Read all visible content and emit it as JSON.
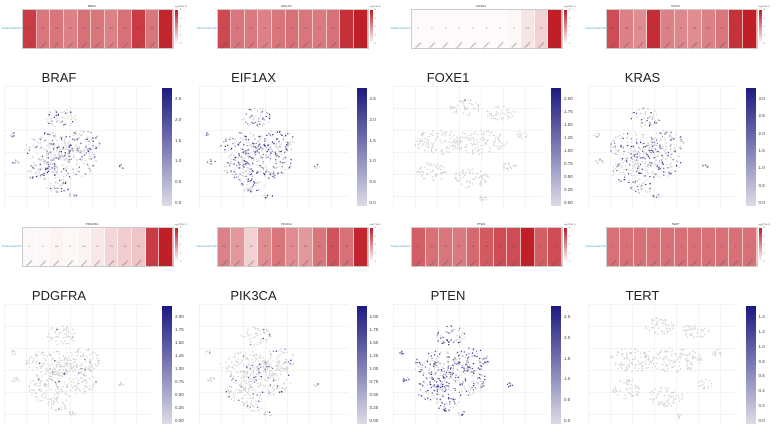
{
  "colors": {
    "heat_high": "#c01a24",
    "heat_low": "#ffffff",
    "expr_high": "#1c1a80",
    "expr_low": "#dcdce6",
    "cell_grey": "#cfcfcf",
    "row_label": "#5aa9d6"
  },
  "heatmaps": [
    {
      "gene": "BRAF",
      "row_label": "DataLoaderInfo",
      "legend_title": "log(TPM+1)",
      "legend_ticks": [
        "8",
        "6",
        "4",
        "2",
        "0"
      ],
      "values": [
        "5.8",
        "4.8",
        "4.8",
        "4.4",
        "4.9",
        "4.8",
        "4.5",
        "4.9",
        "5.8",
        "4.8",
        "6.2"
      ],
      "intensity": [
        0.85,
        0.6,
        0.6,
        0.55,
        0.62,
        0.6,
        0.55,
        0.62,
        0.85,
        0.6,
        0.95
      ]
    },
    {
      "gene": "EIF1AX",
      "row_label": "DataLoaderInfo",
      "legend_title": "log(TPM+1)",
      "legend_ticks": [
        "8",
        "6",
        "4",
        "2",
        "0"
      ],
      "values": [
        "5.9",
        "5.3",
        "5.2",
        "5.0",
        "5.3",
        "5.4",
        "5.3",
        "5.2",
        "5.4",
        "6.0",
        "6.4"
      ],
      "intensity": [
        0.8,
        0.6,
        0.58,
        0.55,
        0.6,
        0.62,
        0.6,
        0.58,
        0.62,
        0.9,
        0.98
      ]
    },
    {
      "gene": "FOXE1",
      "row_label": "DataLoaderInfo",
      "legend_title": "log(TPM+1)",
      "legend_ticks": [
        "8",
        "6",
        "4",
        "2",
        "0"
      ],
      "values": [
        "0",
        "0",
        "0",
        "0",
        "0",
        "0",
        "0",
        "0",
        "0.5",
        "1.2",
        "6.5"
      ],
      "intensity": [
        0.02,
        0.02,
        0.02,
        0.02,
        0.02,
        0.02,
        0.02,
        0.03,
        0.12,
        0.2,
        0.98
      ]
    },
    {
      "gene": "KRAS",
      "row_label": "DataLoaderInfo",
      "legend_title": "log(TPM+1)",
      "legend_ticks": [
        "8",
        "6",
        "4",
        "2",
        "0"
      ],
      "values": [
        "4.6",
        "3.8",
        "3.5",
        "4.9",
        "3.9",
        "3.7",
        "3.6",
        "3.8",
        "4.0",
        "5.0",
        "5.5"
      ],
      "intensity": [
        0.78,
        0.55,
        0.5,
        0.92,
        0.55,
        0.52,
        0.5,
        0.55,
        0.6,
        0.9,
        0.98
      ]
    },
    {
      "gene": "PDGFRA",
      "row_label": "DataLoaderInfo",
      "legend_title": "log(TPM+1)",
      "legend_ticks": [
        "8",
        "6",
        "4",
        "2",
        "0"
      ],
      "values": [
        "0",
        "0",
        "0.4",
        "0",
        "0.4",
        "1.0",
        "1.3",
        "1.6",
        "1.8",
        "4.8",
        "6.0"
      ],
      "intensity": [
        0.03,
        0.03,
        0.05,
        0.03,
        0.05,
        0.1,
        0.18,
        0.22,
        0.25,
        0.85,
        0.98
      ]
    },
    {
      "gene": "PIK3CA",
      "row_label": "DataLoaderInfo",
      "legend_title": "log(TPM+1)",
      "legend_ticks": [
        "8",
        "6",
        "4",
        "2",
        "0"
      ],
      "values": [
        "3.6",
        "3.2",
        "2.0",
        "3.3",
        "3.8",
        "3.4",
        "3.2",
        "3.8",
        "4.5",
        "3.9",
        "5.5"
      ],
      "intensity": [
        0.55,
        0.45,
        0.2,
        0.5,
        0.6,
        0.5,
        0.45,
        0.6,
        0.75,
        0.62,
        0.95
      ]
    },
    {
      "gene": "PTEN",
      "row_label": "DataLoaderInfo",
      "legend_title": "log(TPM+1)",
      "legend_ticks": [
        "8",
        "6",
        "4",
        "2",
        "0"
      ],
      "values": [
        "4.7",
        "4.4",
        "4.3",
        "4.2",
        "4.6",
        "4.8",
        "5.0",
        "5.0",
        "5.9",
        "4.7",
        "5.0"
      ],
      "intensity": [
        0.7,
        0.62,
        0.6,
        0.58,
        0.65,
        0.72,
        0.78,
        0.78,
        0.98,
        0.7,
        0.78
      ]
    },
    {
      "gene": "TERT",
      "row_label": "DataLoaderInfo",
      "legend_title": "log(TPM+1)",
      "legend_ticks": [
        "8",
        "6",
        "4",
        "2",
        "0"
      ],
      "values": [
        "0",
        "0",
        "0",
        "0",
        "0",
        "0",
        "0",
        "0",
        "0",
        "0",
        "0"
      ],
      "intensity": [
        0.62,
        0.62,
        0.62,
        0.62,
        0.62,
        0.62,
        0.62,
        0.62,
        0.62,
        0.62,
        0.62
      ]
    }
  ],
  "column_labels": [
    "Cluster0",
    "Cluster1",
    "Cluster2",
    "Cluster3",
    "Cluster4",
    "Cluster5",
    "Cluster6",
    "Cluster7",
    "Cluster8",
    "Cluster9",
    "Cluster10"
  ],
  "umaps": [
    {
      "gene": "BRAF",
      "ticks": [
        "2.5",
        "2.0",
        "1.5",
        "1.0",
        "0.5",
        "0.0"
      ],
      "density": 0.35,
      "max": 2.8
    },
    {
      "gene": "EIF1AX",
      "ticks": [
        "2.5",
        "2.0",
        "1.5",
        "1.0",
        "0.5",
        "0.0"
      ],
      "density": 0.5,
      "max": 2.6
    },
    {
      "gene": "FOXE1",
      "ticks": [
        "2.00",
        "1.75",
        "1.50",
        "1.25",
        "1.00",
        "0.75",
        "0.50",
        "0.25",
        "0.00"
      ],
      "density": 0.01,
      "max": 2.05
    },
    {
      "gene": "KRAS",
      "ticks": [
        "3.0",
        "2.5",
        "2.0",
        "1.5",
        "1.0",
        "0.5",
        "0.0"
      ],
      "density": 0.35,
      "max": 3.1
    },
    {
      "gene": "PDGFRA",
      "ticks": [
        "2.00",
        "1.75",
        "1.50",
        "1.25",
        "1.00",
        "0.75",
        "0.50",
        "0.25",
        "0.00"
      ],
      "density": 0.03,
      "max": 2.0
    },
    {
      "gene": "PIK3CA",
      "ticks": [
        "2.00",
        "1.75",
        "1.50",
        "1.25",
        "1.00",
        "0.75",
        "0.50",
        "0.25",
        "0.00"
      ],
      "density": 0.12,
      "max": 2.1
    },
    {
      "gene": "PTEN",
      "ticks": [
        "2.5",
        "2.0",
        "1.5",
        "1.0",
        "0.5",
        "0.0"
      ],
      "density": 0.55,
      "max": 2.6
    },
    {
      "gene": "TERT",
      "ticks": [
        "1.4",
        "1.2",
        "1.0",
        "0.8",
        "0.6",
        "0.4",
        "0.2",
        "0.0"
      ],
      "density": 0.0,
      "max": 1.5
    }
  ]
}
